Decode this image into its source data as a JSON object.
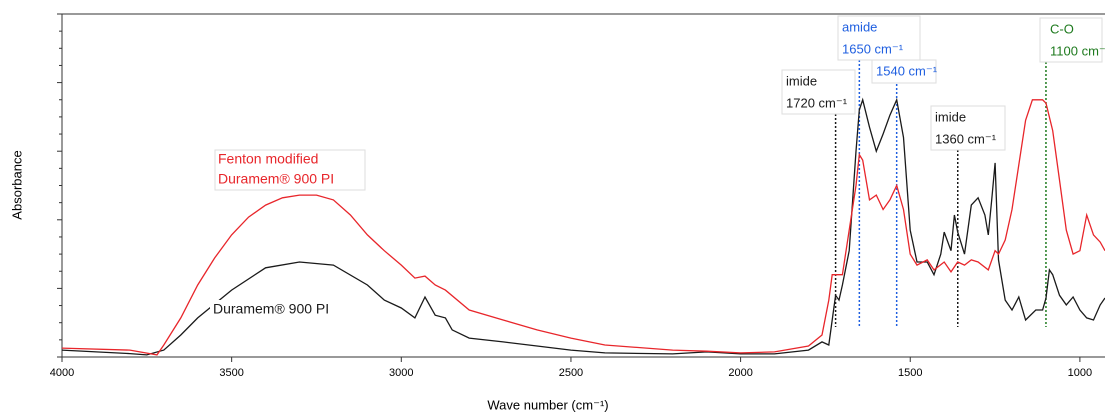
{
  "chart_data": {
    "type": "line",
    "x_label": "Wave number (cm⁻¹)",
    "y_label": "Absorbance",
    "xlim": [
      4000,
      926
    ],
    "ylim": [
      0,
      1
    ],
    "xticks": [
      4000,
      3500,
      3000,
      2500,
      2000,
      1500,
      1000
    ],
    "series": [
      {
        "name": "Duramem® 900 PI",
        "color": "#1a1a1a",
        "x": [
          4000,
          3800,
          3750,
          3700,
          3650,
          3600,
          3500,
          3400,
          3300,
          3200,
          3100,
          3050,
          3000,
          2960,
          2930,
          2900,
          2870,
          2850,
          2800,
          2700,
          2600,
          2500,
          2400,
          2200,
          2100,
          2000,
          1900,
          1800,
          1760,
          1740,
          1730,
          1720,
          1710,
          1700,
          1680,
          1660,
          1650,
          1640,
          1620,
          1600,
          1580,
          1560,
          1540,
          1520,
          1500,
          1480,
          1450,
          1430,
          1410,
          1400,
          1380,
          1370,
          1360,
          1340,
          1320,
          1300,
          1280,
          1270,
          1260,
          1250,
          1240,
          1220,
          1200,
          1180,
          1160,
          1130,
          1110,
          1100,
          1090,
          1080,
          1060,
          1040,
          1020,
          1000,
          980,
          960,
          940,
          926
        ],
        "values": [
          0.02,
          0.01,
          0.006,
          0.02,
          0.064,
          0.114,
          0.195,
          0.26,
          0.277,
          0.268,
          0.21,
          0.166,
          0.143,
          0.114,
          0.175,
          0.122,
          0.114,
          0.079,
          0.055,
          0.044,
          0.032,
          0.02,
          0.012,
          0.009,
          0.015,
          0.009,
          0.009,
          0.02,
          0.044,
          0.035,
          0.108,
          0.18,
          0.166,
          0.21,
          0.31,
          0.6,
          0.72,
          0.75,
          0.67,
          0.6,
          0.65,
          0.705,
          0.75,
          0.64,
          0.37,
          0.277,
          0.277,
          0.24,
          0.3,
          0.364,
          0.31,
          0.414,
          0.364,
          0.3,
          0.443,
          0.464,
          0.414,
          0.356,
          0.458,
          0.566,
          0.283,
          0.166,
          0.137,
          0.175,
          0.108,
          0.137,
          0.137,
          0.172,
          0.254,
          0.24,
          0.18,
          0.152,
          0.175,
          0.137,
          0.114,
          0.108,
          0.152,
          0.172
        ]
      },
      {
        "name": "Fenton modified Duramem® 900 PI",
        "color": "#e8262b",
        "x": [
          4000,
          3800,
          3720,
          3700,
          3650,
          3600,
          3550,
          3500,
          3450,
          3400,
          3350,
          3300,
          3250,
          3200,
          3150,
          3100,
          3050,
          3000,
          2960,
          2930,
          2900,
          2870,
          2800,
          2700,
          2600,
          2500,
          2400,
          2200,
          2100,
          2000,
          1900,
          1800,
          1760,
          1740,
          1730,
          1720,
          1700,
          1680,
          1660,
          1650,
          1640,
          1620,
          1600,
          1580,
          1560,
          1540,
          1520,
          1500,
          1480,
          1450,
          1430,
          1400,
          1380,
          1360,
          1340,
          1320,
          1300,
          1270,
          1250,
          1240,
          1220,
          1200,
          1180,
          1160,
          1140,
          1110,
          1100,
          1080,
          1060,
          1040,
          1020,
          1000,
          980,
          960,
          940,
          926
        ],
        "values": [
          0.026,
          0.02,
          0.006,
          0.035,
          0.114,
          0.21,
          0.289,
          0.356,
          0.408,
          0.443,
          0.464,
          0.472,
          0.472,
          0.458,
          0.414,
          0.356,
          0.31,
          0.268,
          0.23,
          0.236,
          0.21,
          0.195,
          0.137,
          0.108,
          0.079,
          0.055,
          0.035,
          0.02,
          0.017,
          0.012,
          0.015,
          0.032,
          0.064,
          0.166,
          0.24,
          0.24,
          0.24,
          0.37,
          0.5,
          0.59,
          0.574,
          0.458,
          0.472,
          0.43,
          0.458,
          0.5,
          0.43,
          0.3,
          0.268,
          0.283,
          0.254,
          0.277,
          0.248,
          0.277,
          0.268,
          0.283,
          0.277,
          0.254,
          0.31,
          0.3,
          0.341,
          0.43,
          0.56,
          0.69,
          0.75,
          0.75,
          0.74,
          0.66,
          0.516,
          0.37,
          0.3,
          0.31,
          0.414,
          0.356,
          0.335,
          0.31
        ]
      }
    ],
    "series_labels": [
      {
        "lines": [
          "Duramem® 900 PI"
        ],
        "color": "#1a1a1a"
      },
      {
        "lines": [
          "Fenton modified",
          "Duramem® 900 PI"
        ],
        "color": "#e8262b"
      }
    ],
    "annotations": [
      {
        "x": 1720,
        "lines": [
          "imide",
          "1720 cm⁻¹"
        ],
        "color": "#1a1a1a"
      },
      {
        "x": 1650,
        "lines": [
          "amide",
          "1650 cm⁻¹"
        ],
        "color": "#1f5fe0"
      },
      {
        "x": 1540,
        "lines": [
          "1540 cm⁻¹"
        ],
        "color": "#1f5fe0"
      },
      {
        "x": 1360,
        "lines": [
          "imide",
          "1360 cm⁻¹"
        ],
        "color": "#1a1a1a"
      },
      {
        "x": 1100,
        "lines": [
          "C-O",
          "1100 cm⁻¹"
        ],
        "color": "#1e7a1e"
      }
    ]
  }
}
